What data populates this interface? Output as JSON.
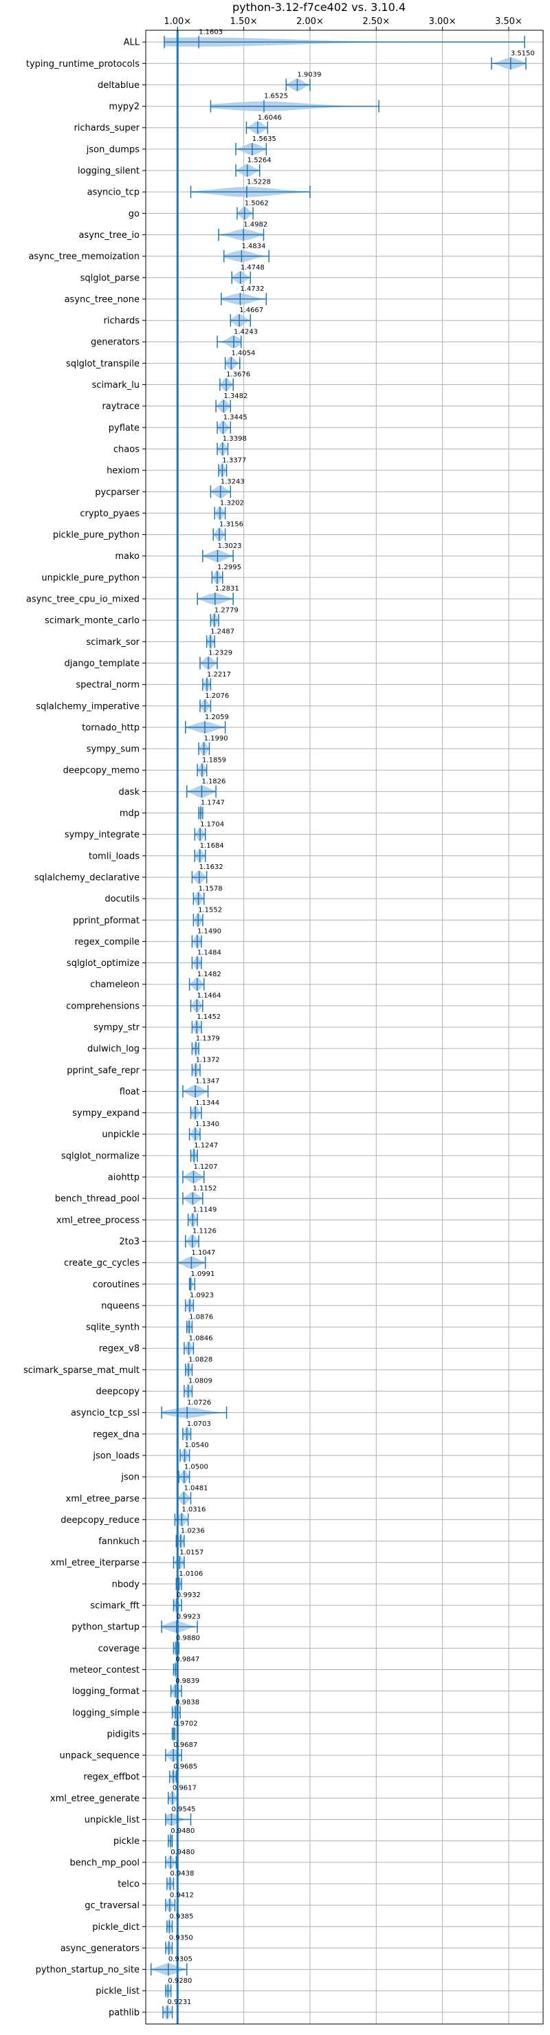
{
  "chart_data": {
    "type": "violin",
    "title": "python-3.12-f7ce402 vs. 3.10.4",
    "xlabel": "",
    "ylabel": "",
    "x_axis_position": "top",
    "xlim": [
      0.76,
      3.76
    ],
    "x_ticks": [
      1.0,
      1.5,
      2.0,
      2.5,
      3.0,
      3.5
    ],
    "x_tick_labels": [
      "1.00×",
      "1.50×",
      "2.00×",
      "2.50×",
      "3.00×",
      "3.50×"
    ],
    "grid": true,
    "reference_line": 1.0,
    "colors": {
      "body": "#a9c9e6",
      "line": "#1f77b4",
      "refline": "#1f77b4",
      "grid": "#b0b0b0"
    },
    "categories": [
      "ALL",
      "typing_runtime_protocols",
      "deltablue",
      "mypy2",
      "richards_super",
      "json_dumps",
      "logging_silent",
      "asyncio_tcp",
      "go",
      "async_tree_io",
      "async_tree_memoization",
      "sqlglot_parse",
      "async_tree_none",
      "richards",
      "generators",
      "sqlglot_transpile",
      "scimark_lu",
      "raytrace",
      "pyflate",
      "chaos",
      "hexiom",
      "pycparser",
      "crypto_pyaes",
      "pickle_pure_python",
      "mako",
      "unpickle_pure_python",
      "async_tree_cpu_io_mixed",
      "scimark_monte_carlo",
      "scimark_sor",
      "django_template",
      "spectral_norm",
      "sqlalchemy_imperative",
      "tornado_http",
      "sympy_sum",
      "deepcopy_memo",
      "dask",
      "mdp",
      "sympy_integrate",
      "tomli_loads",
      "sqlalchemy_declarative",
      "docutils",
      "pprint_pformat",
      "regex_compile",
      "sqlglot_optimize",
      "chameleon",
      "comprehensions",
      "sympy_str",
      "dulwich_log",
      "pprint_safe_repr",
      "float",
      "sympy_expand",
      "unpickle",
      "sqlglot_normalize",
      "aiohttp",
      "bench_thread_pool",
      "xml_etree_process",
      "2to3",
      "create_gc_cycles",
      "coroutines",
      "nqueens",
      "sqlite_synth",
      "regex_v8",
      "scimark_sparse_mat_mult",
      "deepcopy",
      "asyncio_tcp_ssl",
      "regex_dna",
      "json_loads",
      "json",
      "xml_etree_parse",
      "deepcopy_reduce",
      "fannkuch",
      "xml_etree_iterparse",
      "nbody",
      "scimark_fft",
      "python_startup",
      "coverage",
      "meteor_contest",
      "logging_format",
      "logging_simple",
      "pidigits",
      "unpack_sequence",
      "regex_effbot",
      "xml_etree_generate",
      "unpickle_list",
      "pickle",
      "bench_mp_pool",
      "telco",
      "gc_traversal",
      "pickle_dict",
      "async_generators",
      "python_startup_no_site",
      "pickle_list",
      "pathlib"
    ],
    "values": [
      1.1603,
      3.515,
      1.9039,
      1.6525,
      1.6046,
      1.5635,
      1.5264,
      1.5228,
      1.5062,
      1.4982,
      1.4834,
      1.4748,
      1.4732,
      1.4667,
      1.4243,
      1.4054,
      1.3676,
      1.3482,
      1.3445,
      1.3398,
      1.3377,
      1.3243,
      1.3202,
      1.3156,
      1.3023,
      1.2995,
      1.2831,
      1.2779,
      1.2487,
      1.2329,
      1.2217,
      1.2076,
      1.2059,
      1.199,
      1.1859,
      1.1826,
      1.1747,
      1.1704,
      1.1684,
      1.1632,
      1.1578,
      1.1552,
      1.149,
      1.1484,
      1.1482,
      1.1464,
      1.1452,
      1.1379,
      1.1372,
      1.1347,
      1.1344,
      1.134,
      1.1247,
      1.1207,
      1.1152,
      1.1149,
      1.1126,
      1.1047,
      1.0991,
      1.0923,
      1.0876,
      1.0846,
      1.0828,
      1.0809,
      1.0726,
      1.0703,
      1.054,
      1.05,
      1.0481,
      1.0316,
      1.0236,
      1.0157,
      1.0106,
      0.9932,
      0.9923,
      0.988,
      0.9847,
      0.9839,
      0.9838,
      0.9702,
      0.9687,
      0.9685,
      0.9617,
      0.9545,
      0.948,
      0.948,
      0.9438,
      0.9412,
      0.9385,
      0.935,
      0.9305,
      0.928,
      0.9231
    ],
    "value_labels": [
      "1.1603",
      "3.5150",
      "1.9039",
      "1.6525",
      "1.6046",
      "1.5635",
      "1.5264",
      "1.5228",
      "1.5062",
      "1.4982",
      "1.4834",
      "1.4748",
      "1.4732",
      "1.4667",
      "1.4243",
      "1.4054",
      "1.3676",
      "1.3482",
      "1.3445",
      "1.3398",
      "1.3377",
      "1.3243",
      "1.3202",
      "1.3156",
      "1.3023",
      "1.2995",
      "1.2831",
      "1.2779",
      "1.2487",
      "1.2329",
      "1.2217",
      "1.2076",
      "1.2059",
      "1.1990",
      "1.1859",
      "1.1826",
      "1.1747",
      "1.1704",
      "1.1684",
      "1.1632",
      "1.1578",
      "1.1552",
      "1.1490",
      "1.1484",
      "1.1482",
      "1.1464",
      "1.1452",
      "1.1379",
      "1.1372",
      "1.1347",
      "1.1344",
      "1.1340",
      "1.1247",
      "1.1207",
      "1.1152",
      "1.1149",
      "1.1126",
      "1.1047",
      "1.0991",
      "1.0923",
      "1.0876",
      "1.0846",
      "1.0828",
      "1.0809",
      "1.0726",
      "1.0703",
      "1.0540",
      "1.0500",
      "1.0481",
      "1.0316",
      "1.0236",
      "1.0157",
      "1.0106",
      "0.9932",
      "0.9923",
      "0.9880",
      "0.9847",
      "0.9839",
      "0.9838",
      "0.9702",
      "0.9687",
      "0.9685",
      "0.9617",
      "0.9545",
      "0.9480",
      "0.9480",
      "0.9438",
      "0.9412",
      "0.9385",
      "0.9350",
      "0.9305",
      "0.9280",
      "0.9231"
    ],
    "ranges": [
      [
        0.9,
        3.62
      ],
      [
        3.37,
        3.63
      ],
      [
        1.82,
        2.0
      ],
      [
        1.25,
        2.52
      ],
      [
        1.52,
        1.68
      ],
      [
        1.44,
        1.67
      ],
      [
        1.44,
        1.62
      ],
      [
        1.1,
        2.0
      ],
      [
        1.45,
        1.57
      ],
      [
        1.31,
        1.65
      ],
      [
        1.35,
        1.69
      ],
      [
        1.41,
        1.55
      ],
      [
        1.33,
        1.67
      ],
      [
        1.4,
        1.55
      ],
      [
        1.3,
        1.48
      ],
      [
        1.36,
        1.47
      ],
      [
        1.32,
        1.42
      ],
      [
        1.29,
        1.4
      ],
      [
        1.3,
        1.4
      ],
      [
        1.3,
        1.38
      ],
      [
        1.31,
        1.37
      ],
      [
        1.25,
        1.4
      ],
      [
        1.28,
        1.36
      ],
      [
        1.27,
        1.36
      ],
      [
        1.19,
        1.42
      ],
      [
        1.26,
        1.34
      ],
      [
        1.15,
        1.42
      ],
      [
        1.25,
        1.31
      ],
      [
        1.22,
        1.28
      ],
      [
        1.17,
        1.3
      ],
      [
        1.19,
        1.25
      ],
      [
        1.17,
        1.25
      ],
      [
        1.06,
        1.36
      ],
      [
        1.16,
        1.24
      ],
      [
        1.15,
        1.22
      ],
      [
        1.07,
        1.29
      ],
      [
        1.16,
        1.19
      ],
      [
        1.13,
        1.21
      ],
      [
        1.13,
        1.21
      ],
      [
        1.11,
        1.22
      ],
      [
        1.12,
        1.2
      ],
      [
        1.12,
        1.19
      ],
      [
        1.11,
        1.18
      ],
      [
        1.11,
        1.18
      ],
      [
        1.09,
        1.2
      ],
      [
        1.1,
        1.19
      ],
      [
        1.11,
        1.18
      ],
      [
        1.11,
        1.16
      ],
      [
        1.11,
        1.17
      ],
      [
        1.04,
        1.23
      ],
      [
        1.1,
        1.18
      ],
      [
        1.09,
        1.17
      ],
      [
        1.1,
        1.15
      ],
      [
        1.04,
        1.2
      ],
      [
        1.04,
        1.19
      ],
      [
        1.08,
        1.15
      ],
      [
        1.06,
        1.16
      ],
      [
        1.0,
        1.21
      ],
      [
        1.09,
        1.13
      ],
      [
        1.06,
        1.12
      ],
      [
        1.07,
        1.11
      ],
      [
        1.05,
        1.12
      ],
      [
        1.06,
        1.11
      ],
      [
        1.05,
        1.11
      ],
      [
        0.88,
        1.37
      ],
      [
        1.04,
        1.1
      ],
      [
        1.02,
        1.09
      ],
      [
        1.01,
        1.09
      ],
      [
        1.0,
        1.1
      ],
      [
        0.98,
        1.08
      ],
      [
        0.99,
        1.05
      ],
      [
        0.97,
        1.05
      ],
      [
        0.99,
        1.03
      ],
      [
        0.97,
        1.03
      ],
      [
        0.88,
        1.15
      ],
      [
        0.97,
        1.01
      ],
      [
        0.97,
        1.0
      ],
      [
        0.95,
        1.03
      ],
      [
        0.96,
        1.02
      ],
      [
        0.96,
        0.98
      ],
      [
        0.91,
        1.03
      ],
      [
        0.94,
        0.99
      ],
      [
        0.93,
        1.0
      ],
      [
        0.91,
        1.1
      ],
      [
        0.93,
        0.96
      ],
      [
        0.91,
        0.99
      ],
      [
        0.92,
        0.97
      ],
      [
        0.91,
        0.98
      ],
      [
        0.92,
        0.96
      ],
      [
        0.91,
        0.96
      ],
      [
        0.8,
        1.07
      ],
      [
        0.91,
        0.95
      ],
      [
        0.89,
        0.96
      ]
    ]
  }
}
